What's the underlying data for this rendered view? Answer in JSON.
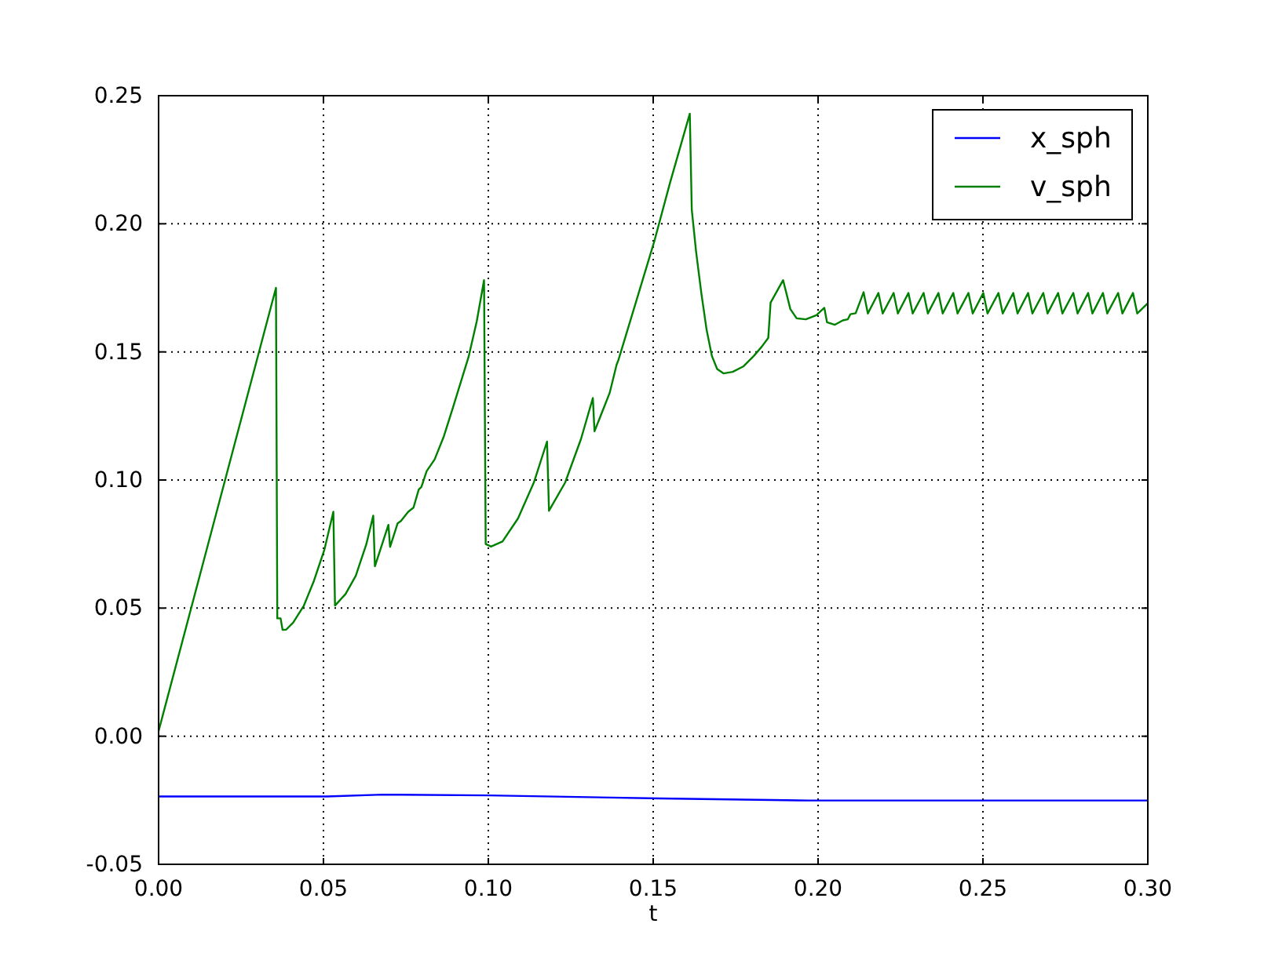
{
  "chart_data": {
    "type": "line",
    "xlabel": "t",
    "xlim": [
      0,
      0.3
    ],
    "xticks": [
      {
        "value": 0,
        "label": "0.00"
      },
      {
        "value": 0.05,
        "label": "0.05"
      },
      {
        "value": 0.1,
        "label": "0.10"
      },
      {
        "value": 0.15,
        "label": "0.15"
      },
      {
        "value": 0.2,
        "label": "0.20"
      },
      {
        "value": 0.25,
        "label": "0.25"
      },
      {
        "value": 0.3,
        "label": "0.30"
      }
    ],
    "ylim": [
      -0.05,
      0.25
    ],
    "yticks": [
      {
        "value": -0.05,
        "label": "-0.05"
      },
      {
        "value": 0,
        "label": "0.00"
      },
      {
        "value": 0.05,
        "label": "0.05"
      },
      {
        "value": 0.1,
        "label": "0.10"
      },
      {
        "value": 0.15,
        "label": "0.15"
      },
      {
        "value": 0.2,
        "label": "0.20"
      },
      {
        "value": 0.25,
        "label": "0.25"
      }
    ],
    "grid": true,
    "legend": "top right",
    "series": [
      {
        "name": "x_sph",
        "color": "#0000ff",
        "x": [
          0,
          0.051,
          0.068,
          0.1,
          0.152,
          0.197,
          0.3
        ],
        "values": [
          -0.0235,
          -0.0235,
          -0.0228,
          -0.0231,
          -0.0243,
          -0.0251,
          -0.0251
        ]
      },
      {
        "name": "v_sph",
        "color": "#008000",
        "x": [
          0,
          0.0356,
          0.036,
          0.037,
          0.0376,
          0.0387,
          0.0408,
          0.044,
          0.0471,
          0.0503,
          0.053,
          0.0535,
          0.0567,
          0.0598,
          0.063,
          0.0651,
          0.0656,
          0.0697,
          0.0702,
          0.0725,
          0.0735,
          0.0757,
          0.0773,
          0.0789,
          0.0797,
          0.0813,
          0.0837,
          0.0865,
          0.0892,
          0.0916,
          0.094,
          0.0965,
          0.0987,
          0.0992,
          0.1008,
          0.1043,
          0.109,
          0.1138,
          0.1178,
          0.1184,
          0.1233,
          0.1281,
          0.1317,
          0.1322,
          0.1368,
          0.1389,
          0.1395,
          0.1456,
          0.1503,
          0.1551,
          0.1611,
          0.1617,
          0.163,
          0.1646,
          0.1662,
          0.1678,
          0.1694,
          0.1713,
          0.1741,
          0.1773,
          0.1805,
          0.1829,
          0.1849,
          0.1856,
          0.1894,
          0.1916,
          0.1935,
          0.1963,
          0.1995,
          0.2019,
          0.2027,
          0.2051,
          0.2075,
          0.209,
          0.2098,
          0.2114,
          0.2138,
          0.2151,
          0.2183,
          0.2196,
          0.2229,
          0.2242,
          0.2274,
          0.2287,
          0.232,
          0.2333,
          0.2365,
          0.2378,
          0.241,
          0.2423,
          0.2456,
          0.2469,
          0.2501,
          0.2514,
          0.2547,
          0.256,
          0.2592,
          0.2605,
          0.2637,
          0.265,
          0.2683,
          0.2696,
          0.2728,
          0.2741,
          0.2774,
          0.2787,
          0.2819,
          0.2832,
          0.2864,
          0.2877,
          0.291,
          0.2923,
          0.2955,
          0.2968,
          0.3
        ],
        "values": [
          0.002,
          0.175,
          0.046,
          0.046,
          0.0415,
          0.0416,
          0.0443,
          0.0508,
          0.0606,
          0.0729,
          0.0876,
          0.051,
          0.0555,
          0.0626,
          0.0749,
          0.0861,
          0.0663,
          0.0825,
          0.0739,
          0.0831,
          0.084,
          0.0876,
          0.0892,
          0.0963,
          0.0973,
          0.1035,
          0.108,
          0.117,
          0.128,
          0.138,
          0.148,
          0.162,
          0.178,
          0.075,
          0.074,
          0.076,
          0.085,
          0.099,
          0.115,
          0.088,
          0.099,
          0.116,
          0.132,
          0.119,
          0.134,
          0.145,
          0.147,
          0.173,
          0.193,
          0.216,
          0.243,
          0.2055,
          0.1892,
          0.1729,
          0.1586,
          0.1484,
          0.1433,
          0.1416,
          0.1422,
          0.1443,
          0.1484,
          0.152,
          0.1555,
          0.1692,
          0.178,
          0.1667,
          0.1631,
          0.1627,
          0.1643,
          0.1672,
          0.1616,
          0.1606,
          0.1623,
          0.1627,
          0.1647,
          0.1651,
          0.1733,
          0.165,
          0.173,
          0.165,
          0.173,
          0.165,
          0.173,
          0.165,
          0.173,
          0.165,
          0.173,
          0.165,
          0.173,
          0.165,
          0.173,
          0.165,
          0.173,
          0.165,
          0.173,
          0.165,
          0.173,
          0.165,
          0.173,
          0.165,
          0.173,
          0.165,
          0.173,
          0.165,
          0.173,
          0.165,
          0.173,
          0.165,
          0.173,
          0.165,
          0.173,
          0.165,
          0.173,
          0.165,
          0.169
        ]
      }
    ]
  }
}
